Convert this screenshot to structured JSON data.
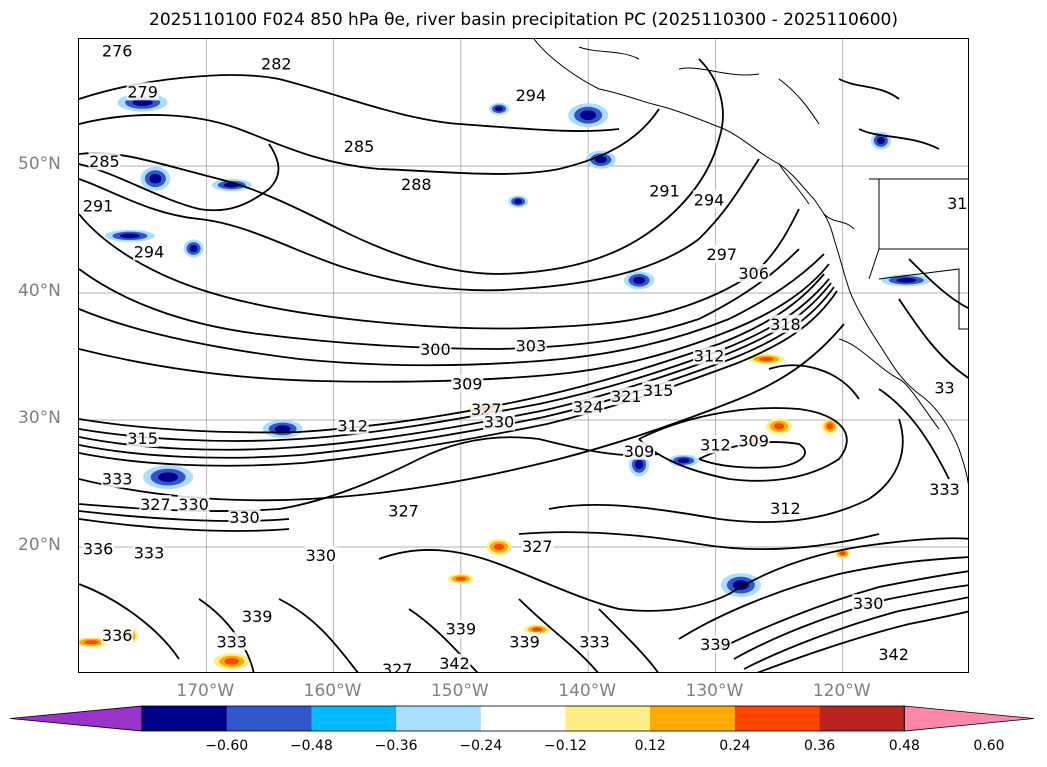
{
  "title": "2025110100 F024 850 hPa θe, river basin precipitation PC (2025110300 - 2025110600)",
  "axes": {
    "lat_ticks": [
      "50°N",
      "40°N",
      "30°N",
      "20°N"
    ],
    "lon_ticks": [
      "170°W",
      "160°W",
      "150°W",
      "140°W",
      "130°W",
      "120°W"
    ],
    "lat_range": [
      10,
      60
    ],
    "lon_range": [
      -180,
      -110
    ],
    "grid_color": "#999999"
  },
  "contour_labels": [
    {
      "text": "276",
      "lon": -177,
      "lat": 59
    },
    {
      "text": "279",
      "lon": -175,
      "lat": 55.8
    },
    {
      "text": "282",
      "lon": -164.5,
      "lat": 58
    },
    {
      "text": "285",
      "lon": -158,
      "lat": 51.5
    },
    {
      "text": "285",
      "lon": -178,
      "lat": 50.3
    },
    {
      "text": "288",
      "lon": -153.5,
      "lat": 48.5
    },
    {
      "text": "291",
      "lon": -178.5,
      "lat": 46.8
    },
    {
      "text": "291",
      "lon": -134,
      "lat": 48
    },
    {
      "text": "294",
      "lon": -174.5,
      "lat": 43.2
    },
    {
      "text": "294",
      "lon": -144.5,
      "lat": 55.5
    },
    {
      "text": "294",
      "lon": -130.5,
      "lat": 47.3
    },
    {
      "text": "297",
      "lon": -129.5,
      "lat": 43
    },
    {
      "text": "306",
      "lon": -127,
      "lat": 41.5
    },
    {
      "text": "300",
      "lon": -152,
      "lat": 35.5
    },
    {
      "text": "303",
      "lon": -144.5,
      "lat": 35.8
    },
    {
      "text": "309",
      "lon": -149.5,
      "lat": 32.8
    },
    {
      "text": "312",
      "lon": -130.5,
      "lat": 35
    },
    {
      "text": "318",
      "lon": -124.5,
      "lat": 37.5
    },
    {
      "text": "312",
      "lon": -158.5,
      "lat": 29.5
    },
    {
      "text": "315",
      "lon": -175,
      "lat": 28.5
    },
    {
      "text": "327",
      "lon": -148,
      "lat": 30.8
    },
    {
      "text": "330",
      "lon": -147,
      "lat": 29.8
    },
    {
      "text": "324",
      "lon": -140,
      "lat": 31
    },
    {
      "text": "321",
      "lon": -137,
      "lat": 31.8
    },
    {
      "text": "315",
      "lon": -134.5,
      "lat": 32.3
    },
    {
      "text": "309",
      "lon": -136,
      "lat": 27.5
    },
    {
      "text": "312",
      "lon": -130,
      "lat": 28
    },
    {
      "text": "309",
      "lon": -127,
      "lat": 28.3
    },
    {
      "text": "333",
      "lon": -177,
      "lat": 25.3
    },
    {
      "text": "327",
      "lon": -174,
      "lat": 23.3
    },
    {
      "text": "330",
      "lon": -171,
      "lat": 23.3
    },
    {
      "text": "330",
      "lon": -167,
      "lat": 22.3
    },
    {
      "text": "327",
      "lon": -154.5,
      "lat": 22.8
    },
    {
      "text": "330",
      "lon": -161,
      "lat": 19.3
    },
    {
      "text": "333",
      "lon": -174.5,
      "lat": 19.5
    },
    {
      "text": "336",
      "lon": -178.5,
      "lat": 19.8
    },
    {
      "text": "327",
      "lon": -144,
      "lat": 20
    },
    {
      "text": "312",
      "lon": -124.5,
      "lat": 23
    },
    {
      "text": "330",
      "lon": -118,
      "lat": 15.5
    },
    {
      "text": "339",
      "lon": -166,
      "lat": 14.5
    },
    {
      "text": "333",
      "lon": -168,
      "lat": 12.5
    },
    {
      "text": "336",
      "lon": -177,
      "lat": 13
    },
    {
      "text": "339",
      "lon": -150,
      "lat": 13.5
    },
    {
      "text": "339",
      "lon": -145,
      "lat": 12.5
    },
    {
      "text": "342",
      "lon": -150.5,
      "lat": 10.8
    },
    {
      "text": "327",
      "lon": -155,
      "lat": 10.3
    },
    {
      "text": "333",
      "lon": -139.5,
      "lat": 12.5
    },
    {
      "text": "339",
      "lon": -130,
      "lat": 12.3
    },
    {
      "text": "342",
      "lon": -116,
      "lat": 11.5
    },
    {
      "text": "333",
      "lon": -112,
      "lat": 24.5
    },
    {
      "text": "33",
      "lon": -112,
      "lat": 32.5
    },
    {
      "text": "31",
      "lon": -111,
      "lat": 47
    }
  ],
  "colorbar": {
    "colors": [
      "#9933cc",
      "#000088",
      "#3355cc",
      "#00bbff",
      "#aaddff",
      "#ffffff",
      "#ffee88",
      "#ffaa00",
      "#ff4400",
      "#bb2222",
      "#ff88aa"
    ],
    "labels": [
      "−0.60",
      "−0.48",
      "−0.36",
      "−0.24",
      "−0.12",
      "0.12",
      "0.24",
      "0.36",
      "0.48",
      "0.60"
    ]
  },
  "chart_data": {
    "type": "contour-map",
    "title": "2025110100 F024 850 hPa θe, river basin precipitation PC (2025110300 - 2025110600)",
    "variable": "850 hPa equivalent potential temperature (K) contours, filled precipitation principal component",
    "contour_levels": [
      276,
      279,
      282,
      285,
      288,
      291,
      294,
      297,
      300,
      303,
      306,
      309,
      312,
      315,
      318,
      321,
      324,
      327,
      330,
      333,
      336,
      339,
      342
    ],
    "fill_levels": [
      -0.6,
      -0.48,
      -0.36,
      -0.24,
      -0.12,
      0.12,
      0.24,
      0.36,
      0.48,
      0.6
    ],
    "negative_regions": [
      {
        "lon": -147,
        "lat": 54.5
      },
      {
        "lon": -139,
        "lat": 50.5
      },
      {
        "lon": -140,
        "lat": 54
      },
      {
        "lon": -176,
        "lat": 44.5
      },
      {
        "lon": -171,
        "lat": 43.5
      },
      {
        "lon": -174,
        "lat": 49
      },
      {
        "lon": -168,
        "lat": 48.5
      },
      {
        "lon": -175,
        "lat": 55
      },
      {
        "lon": -136,
        "lat": 26.5
      },
      {
        "lon": -132.5,
        "lat": 26.8
      },
      {
        "lon": -164,
        "lat": 29.3
      },
      {
        "lon": -173,
        "lat": 25.5
      },
      {
        "lon": -145.5,
        "lat": 47.2
      },
      {
        "lon": -136,
        "lat": 41
      },
      {
        "lon": -128,
        "lat": 17
      },
      {
        "lon": -115,
        "lat": 41
      },
      {
        "lon": -117,
        "lat": 52
      }
    ],
    "positive_regions": [
      {
        "lon": -120,
        "lat": 19.5
      },
      {
        "lon": -147,
        "lat": 20
      },
      {
        "lon": -179,
        "lat": 12.5
      },
      {
        "lon": -176,
        "lat": 13
      },
      {
        "lon": -150,
        "lat": 17.5
      },
      {
        "lon": -148,
        "lat": 30.8
      },
      {
        "lon": -127,
        "lat": 28.5
      },
      {
        "lon": -125,
        "lat": 29.5
      },
      {
        "lon": -126,
        "lat": 34.8
      },
      {
        "lon": -121,
        "lat": 29.5
      },
      {
        "lon": -144,
        "lat": 13.5
      },
      {
        "lon": -168,
        "lat": 11
      }
    ]
  }
}
